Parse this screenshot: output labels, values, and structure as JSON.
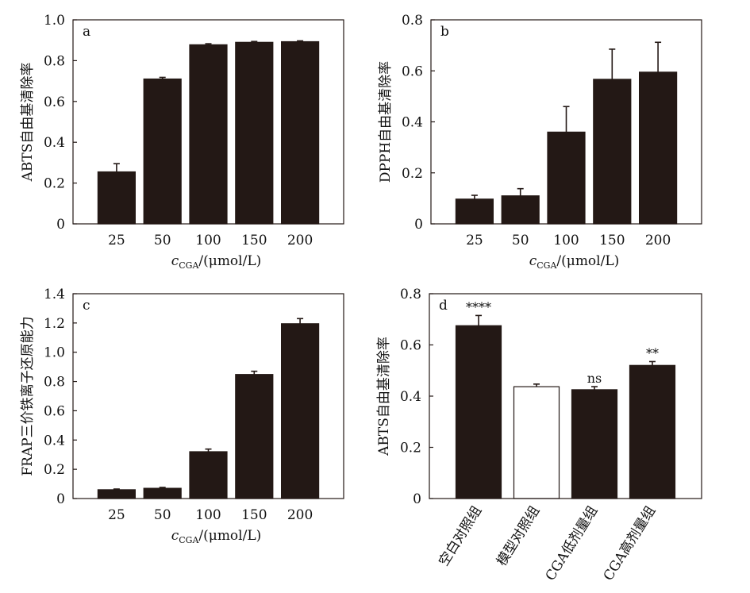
{
  "chart_data": [
    {
      "panel": "a",
      "type": "bar",
      "categories": [
        "25",
        "50",
        "100",
        "150",
        "200"
      ],
      "values": [
        0.255,
        0.71,
        0.878,
        0.89,
        0.893
      ],
      "errors": [
        0.04,
        0.008,
        0.005,
        0.004,
        0.004
      ],
      "ylabel": "ABTS自由基清除率",
      "xlabel_main": "c",
      "xlabel_sub": "CGA",
      "xlabel_unit": "/(μmol/L)",
      "ylim": [
        0,
        1.0
      ],
      "yticks": [
        "0",
        "0.2",
        "0.4",
        "0.6",
        "0.8",
        "1.0"
      ],
      "bar_fill": [
        "#231815",
        "#231815",
        "#231815",
        "#231815",
        "#231815"
      ]
    },
    {
      "panel": "b",
      "type": "bar",
      "categories": [
        "25",
        "50",
        "100",
        "150",
        "200"
      ],
      "values": [
        0.097,
        0.11,
        0.36,
        0.567,
        0.595
      ],
      "errors": [
        0.015,
        0.028,
        0.1,
        0.118,
        0.117
      ],
      "ylabel": "DPPH自由基清除率",
      "xlabel_main": "c",
      "xlabel_sub": "CGA",
      "xlabel_unit": "/(μmol/L)",
      "ylim": [
        0,
        0.8
      ],
      "yticks": [
        "0",
        "0.2",
        "0.4",
        "0.6",
        "0.8"
      ],
      "bar_fill": [
        "#231815",
        "#231815",
        "#231815",
        "#231815",
        "#231815"
      ]
    },
    {
      "panel": "c",
      "type": "bar",
      "categories": [
        "25",
        "50",
        "100",
        "150",
        "200"
      ],
      "values": [
        0.06,
        0.07,
        0.32,
        0.848,
        1.195
      ],
      "errors": [
        0.005,
        0.006,
        0.018,
        0.022,
        0.035
      ],
      "ylabel": "FRAP三价铁离子还原能力",
      "xlabel_main": "c",
      "xlabel_sub": "CGA",
      "xlabel_unit": "/(μmol/L)",
      "ylim": [
        0,
        1.4
      ],
      "yticks": [
        "0",
        "0.2",
        "0.4",
        "0.6",
        "0.8",
        "1.0",
        "1.2",
        "1.4"
      ],
      "bar_fill": [
        "#231815",
        "#231815",
        "#231815",
        "#231815",
        "#231815"
      ]
    },
    {
      "panel": "d",
      "type": "bar",
      "categories": [
        "空白对照组",
        "模型对照组",
        "CGA低剂量组",
        "CGA高剂量组"
      ],
      "values": [
        0.675,
        0.437,
        0.425,
        0.52
      ],
      "errors": [
        0.04,
        0.01,
        0.012,
        0.015
      ],
      "annotations": [
        "****",
        "",
        "ns",
        "**"
      ],
      "ylabel": "ABTS自由基清除率",
      "ylim": [
        0,
        0.8
      ],
      "yticks": [
        "0",
        "0.2",
        "0.4",
        "0.6",
        "0.8"
      ],
      "bar_fill": [
        "#231815",
        "#ffffff",
        "#231815",
        "#231815"
      ]
    }
  ]
}
